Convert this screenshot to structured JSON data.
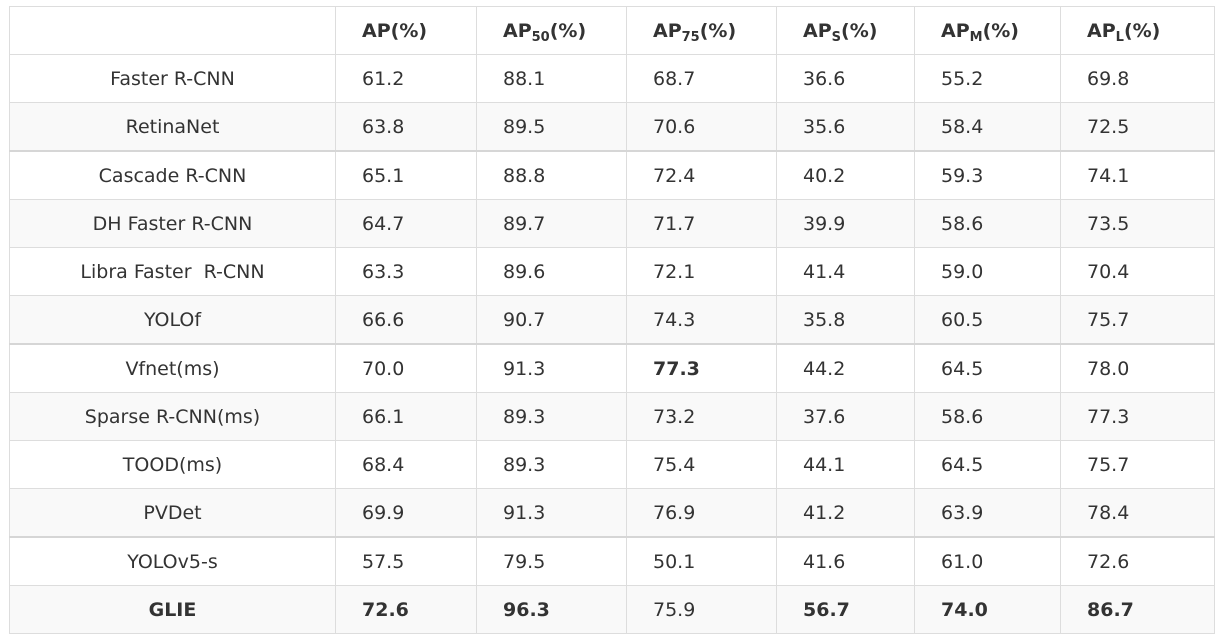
{
  "table": {
    "header": {
      "blank": "",
      "cols": [
        {
          "base": "AP",
          "sub": "",
          "suffix": "(%)"
        },
        {
          "base": "AP",
          "sub": "50",
          "suffix": "(%)"
        },
        {
          "base": "AP",
          "sub": "75",
          "suffix": "(%)"
        },
        {
          "base": "AP",
          "sub": "S",
          "suffix": "(%)"
        },
        {
          "base": "AP",
          "sub": "M",
          "suffix": "(%)"
        },
        {
          "base": "AP",
          "sub": "L",
          "suffix": "(%)"
        }
      ]
    },
    "rows": [
      {
        "method": "Faster R-CNN",
        "values": [
          "61.2",
          "88.1",
          "68.7",
          "36.6",
          "55.2",
          "69.8"
        ]
      },
      {
        "method": "RetinaNet",
        "values": [
          "63.8",
          "89.5",
          "70.6",
          "35.6",
          "58.4",
          "72.5"
        ]
      },
      {
        "method": "Cascade R-CNN",
        "values": [
          "65.1",
          "88.8",
          "72.4",
          "40.2",
          "59.3",
          "74.1"
        ]
      },
      {
        "method": "DH Faster R-CNN",
        "values": [
          "64.7",
          "89.7",
          "71.7",
          "39.9",
          "58.6",
          "73.5"
        ]
      },
      {
        "method": "Libra Faster  R-CNN",
        "values": [
          "63.3",
          "89.6",
          "72.1",
          "41.4",
          "59.0",
          "70.4"
        ]
      },
      {
        "method": "YOLOf",
        "values": [
          "66.6",
          "90.7",
          "74.3",
          "35.8",
          "60.5",
          "75.7"
        ]
      },
      {
        "method": "Vfnet(ms)",
        "values": [
          "70.0",
          "91.3",
          "77.3",
          "44.2",
          "64.5",
          "78.0"
        ]
      },
      {
        "method": "Sparse R-CNN(ms)",
        "values": [
          "66.1",
          "89.3",
          "73.2",
          "37.6",
          "58.6",
          "77.3"
        ]
      },
      {
        "method": "TOOD(ms)",
        "values": [
          "68.4",
          "89.3",
          "75.4",
          "44.1",
          "64.5",
          "75.7"
        ]
      },
      {
        "method": "PVDet",
        "values": [
          "69.9",
          "91.3",
          "76.9",
          "41.2",
          "63.9",
          "78.4"
        ]
      },
      {
        "method": "YOLOv5-s",
        "values": [
          "57.5",
          "79.5",
          "50.1",
          "41.6",
          "61.0",
          "72.6"
        ]
      },
      {
        "method": "GLIE",
        "values": [
          "72.6",
          "96.3",
          "75.9",
          "56.7",
          "74.0",
          "86.7"
        ]
      }
    ]
  }
}
